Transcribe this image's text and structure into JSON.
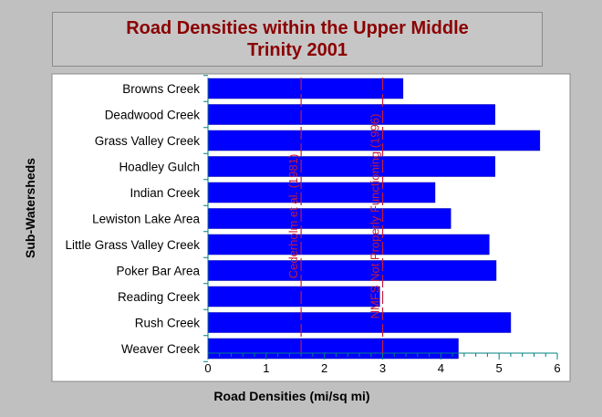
{
  "chart_data": {
    "type": "bar",
    "orientation": "horizontal",
    "title_lines": [
      "Road Densities within the Upper Middle",
      "Trinity 2001"
    ],
    "xlabel": "Road Densities (mi/sq mi)",
    "ylabel": "Sub-Watersheds",
    "categories": [
      "Browns Creek",
      "Deadwood Creek",
      "Grass Valley Creek",
      "Hoadley Gulch",
      "Indian Creek",
      "Lewiston Lake Area",
      "Little Grass Valley Creek",
      "Poker Bar Area",
      "Reading Creek",
      "Rush Creek",
      "Weaver Creek"
    ],
    "values": [
      3.35,
      4.93,
      5.7,
      4.93,
      3.9,
      4.17,
      4.83,
      4.95,
      2.95,
      5.2,
      4.3
    ],
    "xlim": [
      0,
      6
    ],
    "xticks": [
      "0",
      "1",
      "2",
      "3",
      "4",
      "5",
      "6"
    ],
    "bar_color": "#0000ff",
    "reference_lines": [
      {
        "label": "Cederholm et al. (1981)",
        "value": 1.6,
        "color": "#c41e3a"
      },
      {
        "label": "NMFS Not Properly Functioning (1996)",
        "value": 3.0,
        "color": "#c41e3a"
      }
    ],
    "grid": false
  }
}
